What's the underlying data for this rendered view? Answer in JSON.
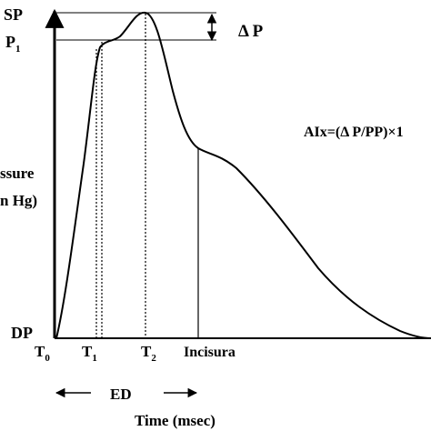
{
  "labels": {
    "sp": "SP",
    "p1_main": "P",
    "p1_sub": "1",
    "dp": "DP",
    "delta_p": "Δ P",
    "aix_formula": "AIx=(Δ P/PP)×1",
    "y_axis_line1": "ssure",
    "y_axis_line2": "n Hg)",
    "t0_main": "T",
    "t0_sub": "0",
    "t1_main": "T",
    "t1_sub": "1",
    "t2_main": "T",
    "t2_sub": "2",
    "incisura": "Incisura",
    "ed": "ED",
    "x_axis": "Time (msec)"
  }
}
